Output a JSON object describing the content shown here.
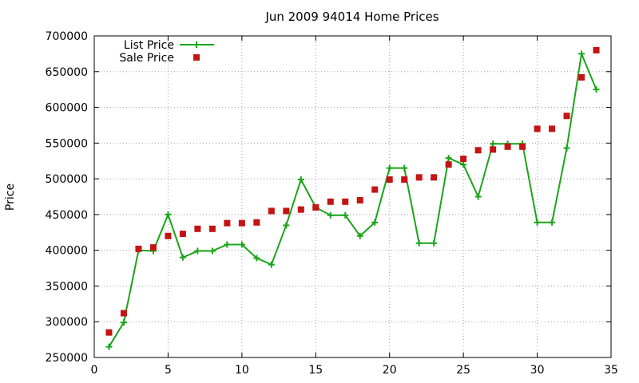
{
  "chart_data": {
    "type": "line",
    "title": "Jun 2009 94014 Home Prices",
    "xlabel": "",
    "ylabel": "Price",
    "xlim": [
      0,
      35
    ],
    "ylim": [
      250000,
      700000
    ],
    "x_ticks": [
      "0",
      "5",
      "10",
      "15",
      "20",
      "25",
      "30",
      "35"
    ],
    "y_ticks": [
      "250000",
      "300000",
      "350000",
      "400000",
      "450000",
      "500000",
      "550000",
      "600000",
      "650000",
      "700000"
    ],
    "grid": true,
    "legend_position": "top-left",
    "x": [
      1,
      2,
      3,
      4,
      5,
      6,
      7,
      8,
      9,
      10,
      11,
      12,
      13,
      14,
      15,
      16,
      17,
      18,
      19,
      20,
      21,
      22,
      23,
      24,
      25,
      26,
      27,
      28,
      29,
      30,
      31,
      32,
      33,
      34
    ],
    "series": [
      {
        "name": "List Price",
        "style": "line+plus",
        "color": "#1aa51a",
        "values": [
          265000,
          299000,
          400000,
          399000,
          450000,
          390000,
          399000,
          399000,
          408000,
          408000,
          389000,
          380000,
          435000,
          499000,
          460000,
          449000,
          449000,
          420000,
          439000,
          515000,
          515000,
          410000,
          410000,
          529000,
          520000,
          475000,
          549000,
          549000,
          549000,
          439000,
          439000,
          543000,
          675000,
          625000
        ]
      },
      {
        "name": "Sale Price",
        "style": "square",
        "color": "#c41414",
        "values": [
          285000,
          312000,
          402000,
          404000,
          420000,
          423000,
          430000,
          430000,
          438000,
          438000,
          439000,
          455000,
          455000,
          457000,
          460000,
          468000,
          468000,
          470000,
          485000,
          499000,
          499000,
          502000,
          502000,
          520000,
          528000,
          540000,
          541000,
          545000,
          545000,
          570000,
          570000,
          588000,
          642000,
          680000
        ]
      }
    ]
  }
}
